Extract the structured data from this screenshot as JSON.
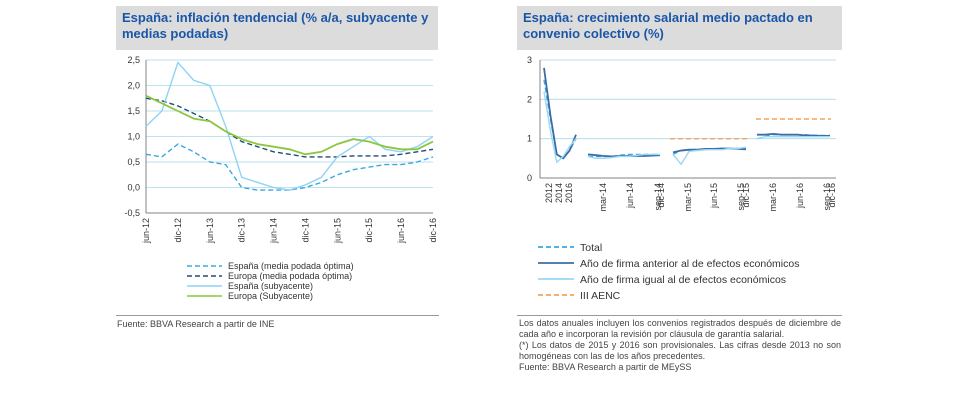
{
  "left_chart": {
    "title": "España: inflación tendencial (% a/a, subyacente y medias podadas)",
    "source": "Fuente: BBVA Research a partir de INE"
  },
  "right_chart": {
    "title": "España: crecimiento salarial medio pactado en convenio colectivo (%)",
    "notes": [
      "Los datos anuales incluyen los convenios registrados después de diciembre de cada año e incorporan la revisión por cláusula de garantía salarial.",
      "(*) Los datos de 2015 y 2016 son provisionales. Las cifras desde 2013 no son homogéneas con las de los años precedentes.",
      "Fuente: BBVA Research a partir de MEySS"
    ]
  },
  "colors": {
    "dashed_light": "#3aa8e0",
    "dashed_dark": "#1f4e79",
    "solid_light": "#8fd3f4",
    "solid_green": "#8cc63f",
    "total_dashed": "#3aa8e0",
    "anterior": "#3a6ea5",
    "igual": "#9ad8f5",
    "aenc": "#f4a460"
  },
  "chart_data": [
    {
      "type": "line",
      "title": "España: inflación tendencial (% a/a, subyacente y medias podadas)",
      "x": [
        "jun-12",
        "sep-12",
        "dic-12",
        "mar-13",
        "jun-13",
        "sep-13",
        "dic-13",
        "mar-14",
        "jun-14",
        "sep-14",
        "dic-14",
        "mar-15",
        "jun-15",
        "sep-15",
        "dic-15",
        "mar-16",
        "jun-16",
        "sep-16",
        "dic-16"
      ],
      "x_tick_labels": [
        "jun-12",
        "dic-12",
        "jun-13",
        "dic-13",
        "jun-14",
        "dic-14",
        "jun-15",
        "dic-15",
        "jun-16",
        "dic-16"
      ],
      "ylim": [
        -0.5,
        2.5
      ],
      "yticks": [
        "-0,5",
        "0,0",
        "0,5",
        "1,0",
        "1,5",
        "2,0",
        "2,5"
      ],
      "grid": true,
      "legend_position": "bottom",
      "series": [
        {
          "name": "España (media podada óptima)",
          "style": "dashed",
          "color_key": "dashed_light",
          "values": [
            0.65,
            0.6,
            0.85,
            0.7,
            0.5,
            0.45,
            0.0,
            -0.05,
            -0.05,
            -0.05,
            0.0,
            0.1,
            0.25,
            0.35,
            0.4,
            0.45,
            0.45,
            0.5,
            0.6
          ]
        },
        {
          "name": "Europa (media podada óptima)",
          "style": "dashed",
          "color_key": "dashed_dark",
          "values": [
            1.75,
            1.7,
            1.6,
            1.45,
            1.3,
            1.1,
            0.9,
            0.8,
            0.7,
            0.65,
            0.6,
            0.6,
            0.6,
            0.62,
            0.62,
            0.62,
            0.65,
            0.7,
            0.75
          ]
        },
        {
          "name": "España (subyacente)",
          "style": "solid",
          "color_key": "solid_light",
          "values": [
            1.2,
            1.5,
            2.45,
            2.1,
            2.0,
            1.2,
            0.2,
            0.1,
            0.0,
            -0.05,
            0.05,
            0.2,
            0.6,
            0.8,
            1.0,
            0.75,
            0.7,
            0.8,
            1.0
          ]
        },
        {
          "name": "Europa (Subyacente)",
          "style": "solid",
          "color_key": "solid_green",
          "values": [
            1.8,
            1.65,
            1.5,
            1.35,
            1.3,
            1.1,
            0.95,
            0.85,
            0.8,
            0.75,
            0.65,
            0.7,
            0.85,
            0.95,
            0.9,
            0.8,
            0.75,
            0.75,
            0.9
          ]
        }
      ]
    },
    {
      "type": "line",
      "title": "España: crecimiento salarial medio pactado en convenio colectivo (%)",
      "x_tick_labels": [
        "2012",
        "2014",
        "2016",
        "mar-14",
        "jun-14",
        "sep-14",
        "dic-14",
        "mar-15",
        "jun-15",
        "sep-15",
        "dic-15",
        "mar-16",
        "jun-16",
        "sep-16",
        "dic-16"
      ],
      "ylim": [
        0,
        3
      ],
      "yticks": [
        "0",
        "1",
        "2",
        "3"
      ],
      "grid": true,
      "legend_position": "bottom",
      "series": [
        {
          "name": "Total",
          "style": "dashed",
          "color_key": "total_dashed",
          "segments": [
            [
              2.5,
              1.5,
              0.6,
              0.5,
              0.7,
              1.0
            ],
            [
              0.55,
              0.55,
              0.55,
              0.55,
              0.58,
              0.6,
              0.6,
              0.6,
              0.6,
              0.6
            ],
            [
              0.6,
              0.7,
              0.7,
              0.72,
              0.72,
              0.74,
              0.75,
              0.75,
              0.75,
              0.75
            ],
            [
              1.0,
              1.05,
              1.1,
              1.1,
              1.1,
              1.1,
              1.1,
              1.08,
              1.08,
              1.08
            ]
          ]
        },
        {
          "name": "Año de firma anterior al de efectos económicos",
          "style": "solid",
          "color_key": "anterior",
          "segments": [
            [
              2.8,
              1.6,
              0.6,
              0.5,
              0.7,
              1.1
            ],
            [
              0.6,
              0.58,
              0.56,
              0.55,
              0.56,
              0.56,
              0.56,
              0.56,
              0.57,
              0.58
            ],
            [
              0.65,
              0.7,
              0.72,
              0.72,
              0.74,
              0.74,
              0.75,
              0.75,
              0.74,
              0.73
            ],
            [
              1.1,
              1.1,
              1.12,
              1.1,
              1.1,
              1.1,
              1.08,
              1.08,
              1.07,
              1.07
            ]
          ]
        },
        {
          "name": "Año de firma igual al de efectos económicos",
          "style": "solid",
          "color_key": "igual",
          "segments": [
            [
              2.2,
              1.2,
              0.4,
              0.55,
              0.8,
              1.0
            ],
            [
              0.55,
              0.5,
              0.5,
              0.52,
              0.55,
              0.55,
              0.57,
              0.6,
              0.6,
              0.6
            ],
            [
              0.6,
              0.35,
              0.68,
              0.7,
              0.72,
              0.72,
              0.72,
              0.75,
              0.75,
              0.78
            ],
            [
              1.0,
              1.05,
              1.05,
              1.05,
              1.05,
              1.05,
              1.05,
              1.05,
              1.05,
              1.05
            ]
          ]
        },
        {
          "name": "III AENC",
          "style": "dashed",
          "color_key": "aenc",
          "segments": [
            [
              1.0,
              1.0
            ],
            [
              1.5,
              1.5
            ]
          ]
        }
      ]
    }
  ]
}
